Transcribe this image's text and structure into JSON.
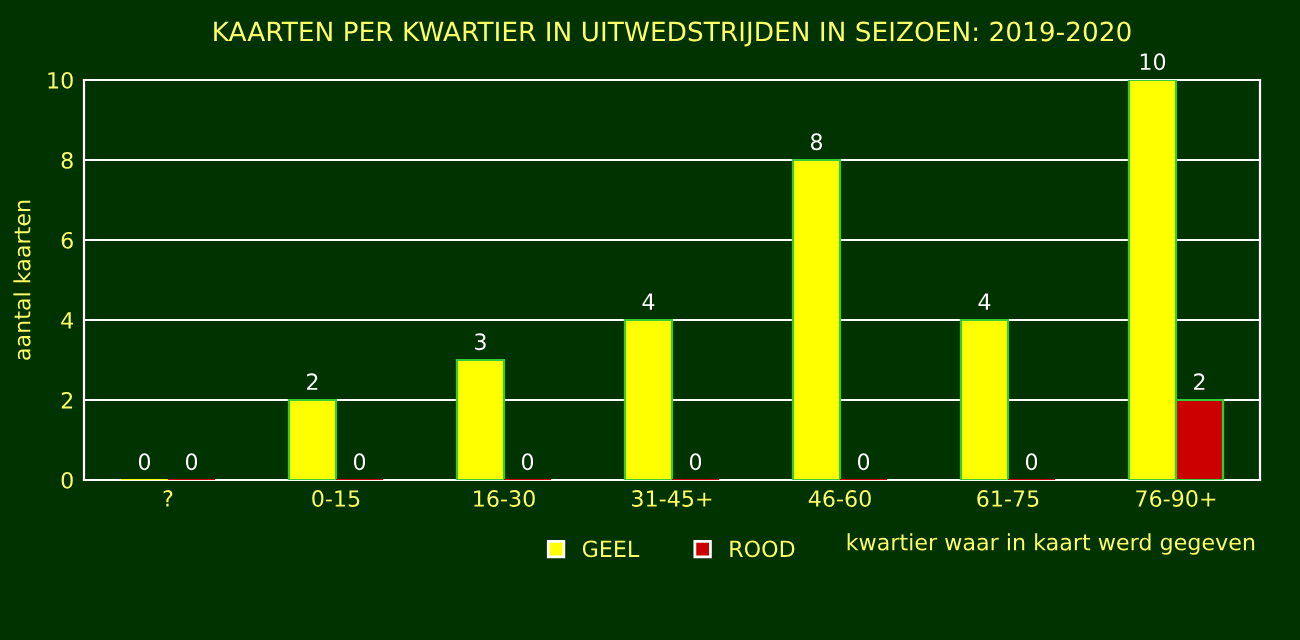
{
  "chart_data": {
    "type": "bar",
    "title": "KAARTEN PER KWARTIER IN UITWEDSTRIJDEN IN SEIZOEN: 2019-2020",
    "categories": [
      "?",
      "0-15",
      "16-30",
      "31-45+",
      "46-60",
      "61-75",
      "76-90+"
    ],
    "series": [
      {
        "name": "GEEL",
        "color": "#ffff00",
        "values": [
          0,
          2,
          3,
          4,
          8,
          4,
          10
        ]
      },
      {
        "name": "ROOD",
        "color": "#cc0000",
        "values": [
          0,
          0,
          0,
          0,
          0,
          0,
          2
        ]
      }
    ],
    "xlabel": "kwartier waar in kaart werd gegeven",
    "ylabel": "aantal kaarten",
    "ylim": [
      0,
      10
    ],
    "yticks": [
      0,
      2,
      4,
      6,
      8,
      10
    ],
    "grid": "y",
    "legend": "bottom",
    "data_labels": true
  }
}
